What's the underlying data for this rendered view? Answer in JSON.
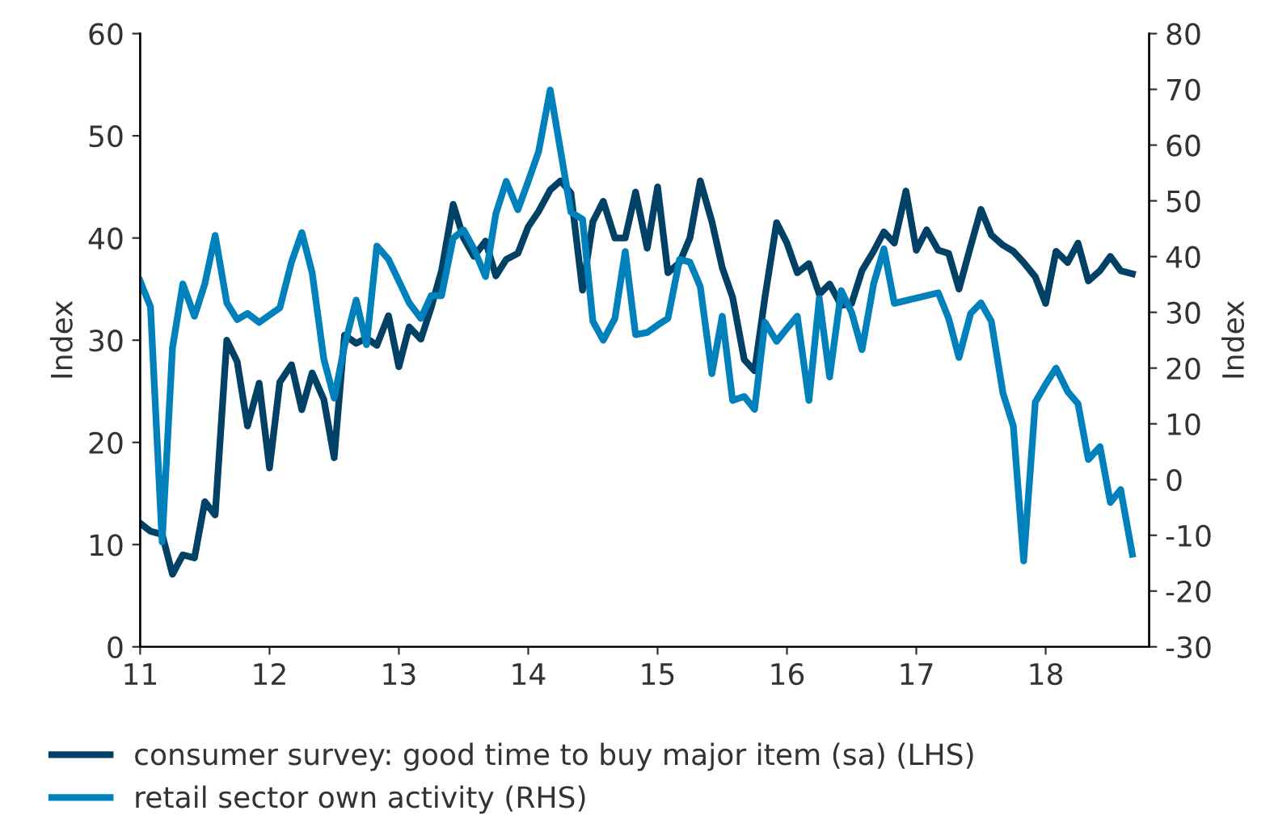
{
  "chart_data": {
    "type": "line",
    "ylabel": "Index",
    "y2label": "Index",
    "xlim": [
      11,
      18.8
    ],
    "xticks": [
      11,
      12,
      13,
      14,
      15,
      16,
      17,
      18
    ],
    "ylim": [
      0,
      60
    ],
    "yticks": [
      0,
      10,
      20,
      30,
      40,
      50,
      60
    ],
    "y2lim": [
      -30,
      80
    ],
    "y2ticks": [
      -30,
      -20,
      -10,
      0,
      10,
      20,
      30,
      40,
      50,
      60,
      70,
      80
    ],
    "grid": false,
    "legend": "bottom",
    "marker": "none",
    "line_style": "solid",
    "series": [
      {
        "name": "consumer survey: good time to buy major item (sa) (LHS)",
        "color": "#004165",
        "x": [
          11.0,
          11.08,
          11.17,
          11.25,
          11.33,
          11.42,
          11.5,
          11.58,
          11.67,
          11.75,
          11.83,
          11.92,
          12.0,
          12.08,
          12.17,
          12.25,
          12.33,
          12.42,
          12.5,
          12.58,
          12.67,
          12.75,
          12.83,
          12.92,
          13.0,
          13.08,
          13.17,
          13.25,
          13.33,
          13.42,
          13.5,
          13.58,
          13.67,
          13.75,
          13.83,
          13.92,
          14.0,
          14.08,
          14.17,
          14.25,
          14.33,
          14.42,
          14.5,
          14.58,
          14.67,
          14.75,
          14.83,
          14.92,
          15.0,
          15.08,
          15.17,
          15.25,
          15.33,
          15.42,
          15.5,
          15.58,
          15.67,
          15.75,
          15.83,
          15.92,
          16.0,
          16.08,
          16.17,
          16.25,
          16.33,
          16.42,
          16.5,
          16.58,
          16.67,
          16.75,
          16.83,
          16.92,
          17.0,
          17.08,
          17.17,
          17.25,
          17.33,
          17.42,
          17.5,
          17.58,
          17.67,
          17.75,
          17.83,
          17.92,
          18.0,
          18.08,
          18.17,
          18.25,
          18.33,
          18.42,
          18.5,
          18.58,
          18.67
        ],
        "values": [
          12.1,
          11.3,
          11.0,
          7.1,
          9.0,
          8.7,
          14.2,
          12.9,
          30.0,
          27.9,
          21.6,
          25.8,
          17.5,
          25.9,
          27.6,
          23.2,
          26.8,
          24.2,
          18.5,
          30.5,
          29.7,
          30.2,
          29.5,
          32.4,
          27.4,
          31.3,
          30.1,
          33.2,
          36.8,
          43.3,
          40.0,
          38.2,
          39.7,
          36.3,
          37.9,
          38.5,
          41.1,
          42.6,
          44.7,
          45.6,
          44.4,
          34.9,
          41.6,
          43.6,
          40.0,
          40.0,
          44.5,
          39.0,
          45.0,
          36.6,
          37.6,
          40.0,
          45.6,
          41.6,
          37.1,
          34.2,
          28.1,
          27.0,
          34.2,
          41.5,
          39.5,
          36.6,
          37.5,
          34.5,
          35.5,
          33.4,
          33.6,
          36.8,
          38.7,
          40.6,
          39.5,
          44.6,
          38.8,
          40.8,
          38.8,
          38.5,
          35.0,
          39.2,
          42.8,
          40.3,
          39.3,
          38.7,
          37.6,
          36.2,
          33.6,
          38.7,
          37.6,
          39.5,
          35.8,
          36.8,
          38.2,
          36.8,
          36.5
        ]
      },
      {
        "name": "retail sector own activity (RHS)",
        "color": "#0081bc",
        "axis": "y2",
        "x": [
          11.0,
          11.08,
          11.17,
          11.25,
          11.33,
          11.42,
          11.5,
          11.58,
          11.67,
          11.75,
          11.83,
          11.92,
          12.0,
          12.08,
          12.17,
          12.25,
          12.33,
          12.42,
          12.5,
          12.58,
          12.67,
          12.75,
          12.83,
          12.92,
          13.0,
          13.08,
          13.17,
          13.25,
          13.33,
          13.42,
          13.5,
          13.58,
          13.67,
          13.75,
          13.83,
          13.92,
          14.0,
          14.08,
          14.17,
          14.25,
          14.33,
          14.42,
          14.5,
          14.58,
          14.67,
          14.75,
          14.83,
          14.92,
          15.0,
          15.08,
          15.17,
          15.25,
          15.33,
          15.42,
          15.5,
          15.58,
          15.67,
          15.75,
          15.83,
          15.92,
          16.0,
          16.08,
          16.17,
          16.25,
          16.33,
          16.42,
          16.5,
          16.58,
          16.67,
          16.75,
          16.83,
          17.17,
          17.25,
          17.33,
          17.42,
          17.5,
          17.58,
          17.67,
          17.75,
          17.83,
          17.92,
          18.0,
          18.08,
          18.17,
          18.25,
          18.33,
          18.42,
          18.5,
          18.58,
          18.67
        ],
        "values": [
          35.6,
          31.0,
          -11.2,
          23.6,
          35.1,
          29.3,
          35.1,
          43.8,
          31.7,
          28.7,
          29.8,
          28.2,
          29.5,
          30.8,
          39.0,
          44.3,
          37.1,
          21.6,
          14.6,
          24.0,
          32.2,
          24.2,
          41.9,
          39.5,
          35.6,
          31.7,
          28.9,
          33.0,
          33.0,
          43.3,
          44.8,
          41.4,
          36.4,
          47.7,
          53.5,
          48.4,
          53.5,
          58.8,
          69.9,
          59.0,
          48.0,
          46.7,
          28.4,
          25.0,
          28.9,
          40.9,
          26.0,
          26.4,
          27.7,
          28.9,
          39.5,
          39.0,
          34.6,
          19.0,
          29.3,
          14.2,
          14.9,
          12.6,
          28.2,
          24.8,
          27.1,
          29.3,
          14.2,
          32.5,
          18.4,
          33.9,
          30.0,
          23.3,
          35.1,
          41.4,
          31.6,
          33.5,
          28.9,
          21.9,
          29.8,
          31.7,
          28.4,
          15.5,
          9.6,
          -14.6,
          13.9,
          17.1,
          20.0,
          15.8,
          13.6,
          3.6,
          5.9,
          -4.1,
          -1.8,
          -13.4
        ]
      }
    ]
  }
}
